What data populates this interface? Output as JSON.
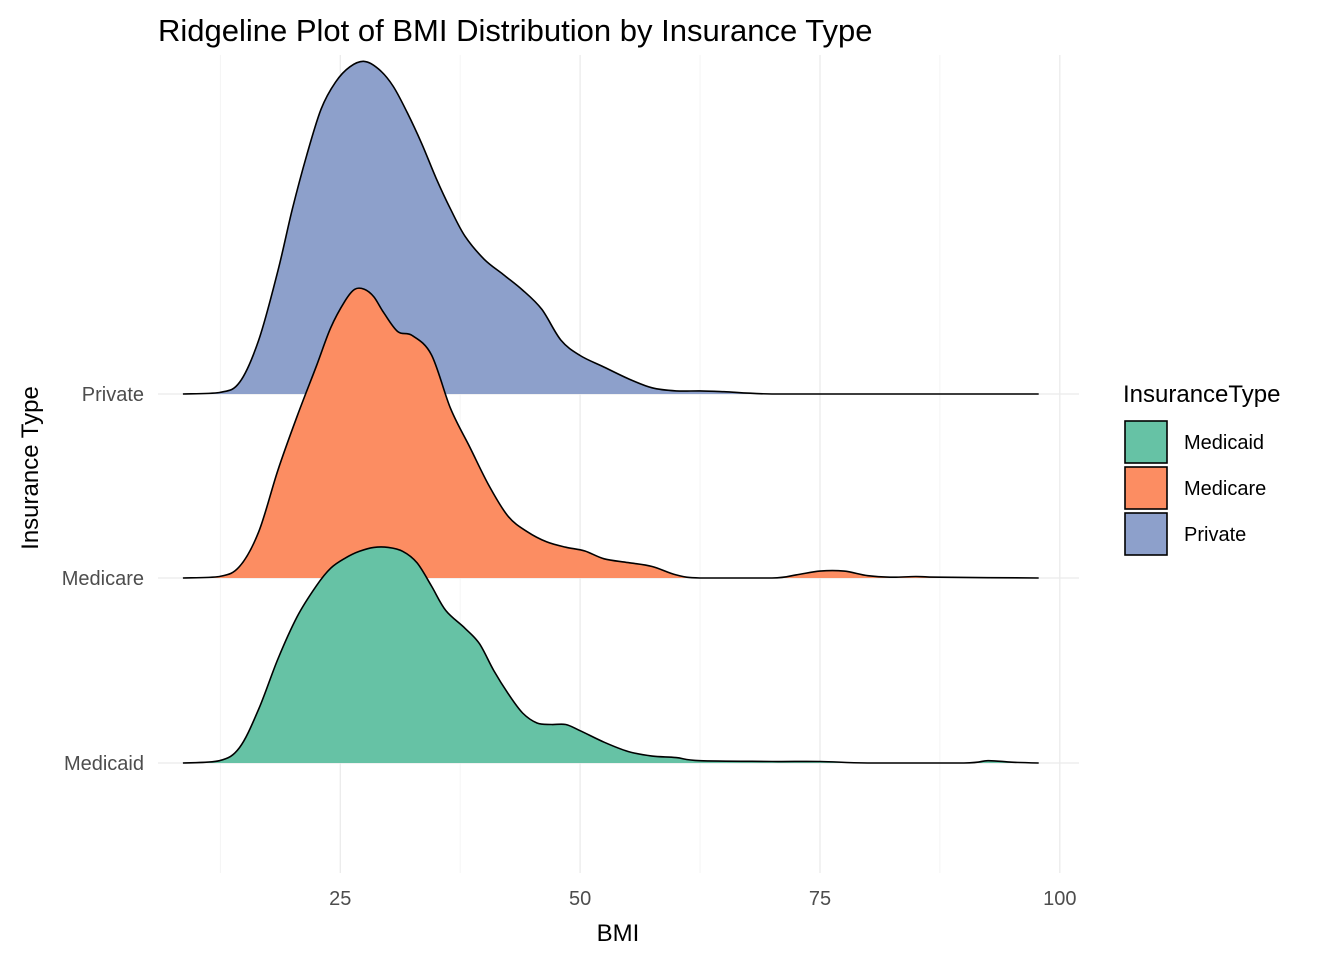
{
  "chart_data": {
    "type": "ridgeline",
    "title": "Ridgeline Plot of BMI Distribution by Insurance Type",
    "xlabel": "BMI",
    "ylabel": "Insurance Type",
    "xlim": [
      6,
      102
    ],
    "x_ticks": [
      25,
      50,
      75,
      100
    ],
    "x_tick_labels": [
      "25",
      "50",
      "75",
      "100"
    ],
    "y_categories": [
      "Medicaid",
      "Medicare",
      "Private"
    ],
    "grid": true,
    "legend": {
      "title": "InsuranceType",
      "position": "right",
      "items": [
        {
          "label": "Medicaid",
          "color": "#66c2a5"
        },
        {
          "label": "Medicare",
          "color": "#fc8d62"
        },
        {
          "label": "Private",
          "color": "#8da0cb"
        }
      ]
    },
    "series": [
      {
        "name": "Medicaid",
        "color": "#66c2a5",
        "density": [
          [
            8.6,
            0.0
          ],
          [
            12.4,
            0.03
          ],
          [
            14.5,
            0.2
          ],
          [
            16.5,
            0.7
          ],
          [
            18.5,
            1.35
          ],
          [
            20.5,
            1.9
          ],
          [
            22.5,
            2.3
          ],
          [
            24.0,
            2.53
          ],
          [
            25.5,
            2.66
          ],
          [
            27.0,
            2.75
          ],
          [
            28.5,
            2.8
          ],
          [
            30.0,
            2.8
          ],
          [
            31.5,
            2.75
          ],
          [
            33.0,
            2.6
          ],
          [
            34.5,
            2.3
          ],
          [
            36.0,
            1.98
          ],
          [
            38.0,
            1.75
          ],
          [
            39.5,
            1.55
          ],
          [
            41.0,
            1.2
          ],
          [
            42.5,
            0.9
          ],
          [
            44.0,
            0.65
          ],
          [
            45.5,
            0.52
          ],
          [
            47.0,
            0.5
          ],
          [
            48.5,
            0.5
          ],
          [
            50.0,
            0.42
          ],
          [
            52.5,
            0.27
          ],
          [
            55.0,
            0.15
          ],
          [
            57.5,
            0.09
          ],
          [
            60.0,
            0.07
          ],
          [
            62.5,
            0.03
          ],
          [
            70.0,
            0.02
          ],
          [
            75.0,
            0.02
          ],
          [
            80.0,
            0.0
          ],
          [
            90.0,
            0.0
          ],
          [
            92.5,
            0.03
          ],
          [
            95.0,
            0.01
          ],
          [
            97.8,
            0.0
          ]
        ]
      },
      {
        "name": "Medicare",
        "color": "#fc8d62",
        "density": [
          [
            8.6,
            0.0
          ],
          [
            12.4,
            0.02
          ],
          [
            14.5,
            0.15
          ],
          [
            16.5,
            0.6
          ],
          [
            18.5,
            1.4
          ],
          [
            20.5,
            2.1
          ],
          [
            22.5,
            2.75
          ],
          [
            24.0,
            3.25
          ],
          [
            25.5,
            3.6
          ],
          [
            26.5,
            3.75
          ],
          [
            27.5,
            3.75
          ],
          [
            28.5,
            3.65
          ],
          [
            29.5,
            3.45
          ],
          [
            31.0,
            3.2
          ],
          [
            32.5,
            3.15
          ],
          [
            34.5,
            2.9
          ],
          [
            36.5,
            2.2
          ],
          [
            38.5,
            1.7
          ],
          [
            40.5,
            1.2
          ],
          [
            42.5,
            0.8
          ],
          [
            44.5,
            0.6
          ],
          [
            46.5,
            0.47
          ],
          [
            48.5,
            0.4
          ],
          [
            50.5,
            0.35
          ],
          [
            52.5,
            0.25
          ],
          [
            55.0,
            0.2
          ],
          [
            57.5,
            0.15
          ],
          [
            60.0,
            0.04
          ],
          [
            62.5,
            0.0
          ],
          [
            70.0,
            0.0
          ],
          [
            72.5,
            0.04
          ],
          [
            75.0,
            0.09
          ],
          [
            77.5,
            0.09
          ],
          [
            80.0,
            0.03
          ],
          [
            82.5,
            0.01
          ],
          [
            85.0,
            0.02
          ],
          [
            87.5,
            0.01
          ],
          [
            97.8,
            0.0
          ]
        ]
      },
      {
        "name": "Private",
        "color": "#8da0cb",
        "density": [
          [
            8.6,
            0.0
          ],
          [
            12.4,
            0.02
          ],
          [
            14.5,
            0.15
          ],
          [
            16.5,
            0.7
          ],
          [
            18.5,
            1.6
          ],
          [
            20.0,
            2.4
          ],
          [
            21.5,
            3.1
          ],
          [
            23.0,
            3.7
          ],
          [
            24.5,
            4.05
          ],
          [
            26.0,
            4.25
          ],
          [
            27.5,
            4.32
          ],
          [
            29.0,
            4.22
          ],
          [
            30.5,
            4.0
          ],
          [
            32.0,
            3.65
          ],
          [
            33.5,
            3.25
          ],
          [
            35.0,
            2.8
          ],
          [
            36.5,
            2.4
          ],
          [
            38.0,
            2.05
          ],
          [
            40.0,
            1.75
          ],
          [
            42.0,
            1.55
          ],
          [
            44.0,
            1.35
          ],
          [
            46.0,
            1.1
          ],
          [
            48.0,
            0.7
          ],
          [
            50.0,
            0.5
          ],
          [
            52.5,
            0.35
          ],
          [
            55.0,
            0.2
          ],
          [
            57.5,
            0.08
          ],
          [
            60.0,
            0.04
          ],
          [
            62.5,
            0.04
          ],
          [
            65.0,
            0.03
          ],
          [
            70.0,
            0.0
          ],
          [
            80.0,
            0.0
          ],
          [
            97.8,
            0.0
          ]
        ]
      }
    ]
  }
}
